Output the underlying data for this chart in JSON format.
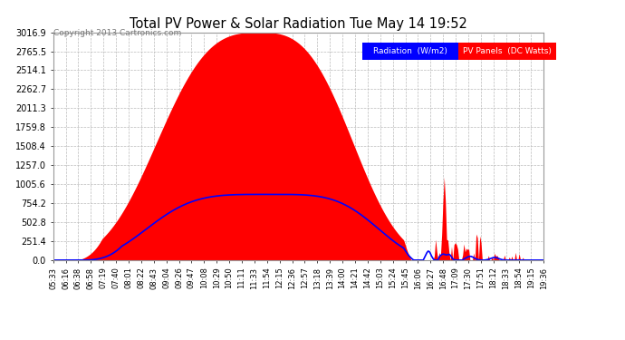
{
  "title": "Total PV Power & Solar Radiation Tue May 14 19:52",
  "copyright": "Copyright 2013 Cartronics.com",
  "bg_color": "#ffffff",
  "plot_bg_color": "#ffffff",
  "grid_color": "#cccccc",
  "ylim": [
    0.0,
    3016.9
  ],
  "yticks": [
    0.0,
    251.4,
    502.8,
    754.2,
    1005.6,
    1257.0,
    1508.4,
    1759.8,
    2011.3,
    2262.7,
    2514.1,
    2765.5,
    3016.9
  ],
  "pv_fill_color": "red",
  "radiation_line_color": "blue",
  "legend_radiation_text": "Radiation  (W/m2)",
  "legend_pv_text": "PV Panels  (DC Watts)",
  "xtick_labels": [
    "05:33",
    "06:16",
    "06:38",
    "06:58",
    "07:19",
    "07:40",
    "08:01",
    "08:22",
    "08:43",
    "09:04",
    "09:26",
    "09:47",
    "10:08",
    "10:29",
    "10:50",
    "11:11",
    "11:33",
    "11:54",
    "12:15",
    "12:36",
    "12:57",
    "13:18",
    "13:39",
    "14:00",
    "14:21",
    "14:42",
    "15:03",
    "15:24",
    "15:45",
    "16:06",
    "16:27",
    "16:48",
    "17:09",
    "17:30",
    "17:51",
    "18:12",
    "18:33",
    "18:54",
    "19:15",
    "19:36"
  ],
  "n_points": 400
}
